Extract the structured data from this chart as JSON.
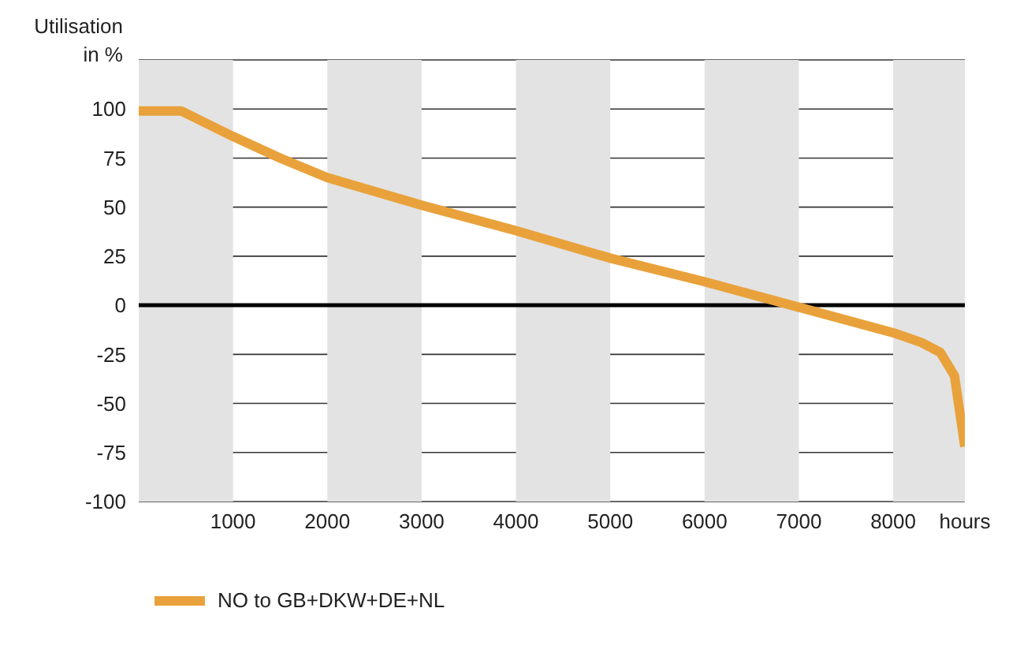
{
  "chart_data": {
    "type": "line",
    "ylabel": "Utilisation in %",
    "x": [
      0,
      450,
      1000,
      1500,
      2000,
      3000,
      4000,
      5000,
      6000,
      7000,
      8000,
      8300,
      8500,
      8650,
      8760
    ],
    "series": [
      {
        "name": "NO to GB+DKW+DE+NL",
        "color": "#e9a23b",
        "values": [
          99,
          99,
          86,
          75,
          65,
          51,
          38,
          24,
          12,
          -1,
          -14,
          -19,
          -24,
          -36,
          -72
        ]
      }
    ],
    "xlim": [
      0,
      8760
    ],
    "xticks": [
      1000,
      2000,
      3000,
      4000,
      5000,
      6000,
      7000,
      8000,
      {
        "value": 8760,
        "label": "hours"
      }
    ],
    "ylim": [
      -100,
      125
    ],
    "yticks": [
      -100,
      -75,
      -50,
      -25,
      0,
      25,
      50,
      75,
      100,
      {
        "value": 125,
        "label": null
      }
    ],
    "bands": [
      {
        "axis": "x",
        "from": 0,
        "to": 1000,
        "color": "#e3e3e3"
      },
      {
        "axis": "x",
        "from": 2000,
        "to": 3000,
        "color": "#e3e3e3"
      },
      {
        "axis": "x",
        "from": 4000,
        "to": 5000,
        "color": "#e3e3e3"
      },
      {
        "axis": "x",
        "from": 6000,
        "to": 7000,
        "color": "#e3e3e3"
      },
      {
        "axis": "x",
        "from": 8000,
        "to": 8760,
        "color": "#e3e3e3"
      }
    ],
    "ref_lines": [
      {
        "axis": "y",
        "value": 0,
        "color": "#000000"
      }
    ],
    "grid": "y",
    "legend": "bottom left",
    "marker": "none",
    "line_style": "solid"
  }
}
